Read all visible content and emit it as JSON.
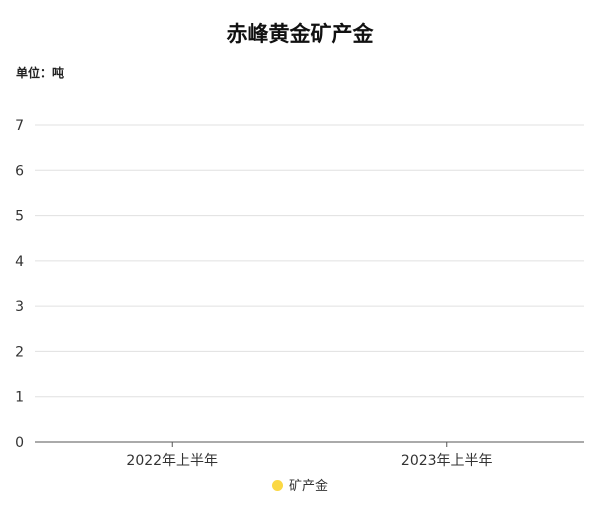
{
  "chart_data": {
    "type": "bar",
    "title": "赤峰黄金矿产金",
    "unit_label": "单位：吨",
    "categories": [
      "2022年上半年",
      "2023年上半年"
    ],
    "series": [
      {
        "name": "矿产金",
        "values": [
          null,
          null
        ],
        "color": "#FBD844"
      }
    ],
    "yticks": [
      "0",
      "1",
      "2",
      "3",
      "4",
      "5",
      "6",
      "7"
    ],
    "ylim": [
      0,
      7
    ],
    "grid": true,
    "legend": "bottom-center"
  }
}
